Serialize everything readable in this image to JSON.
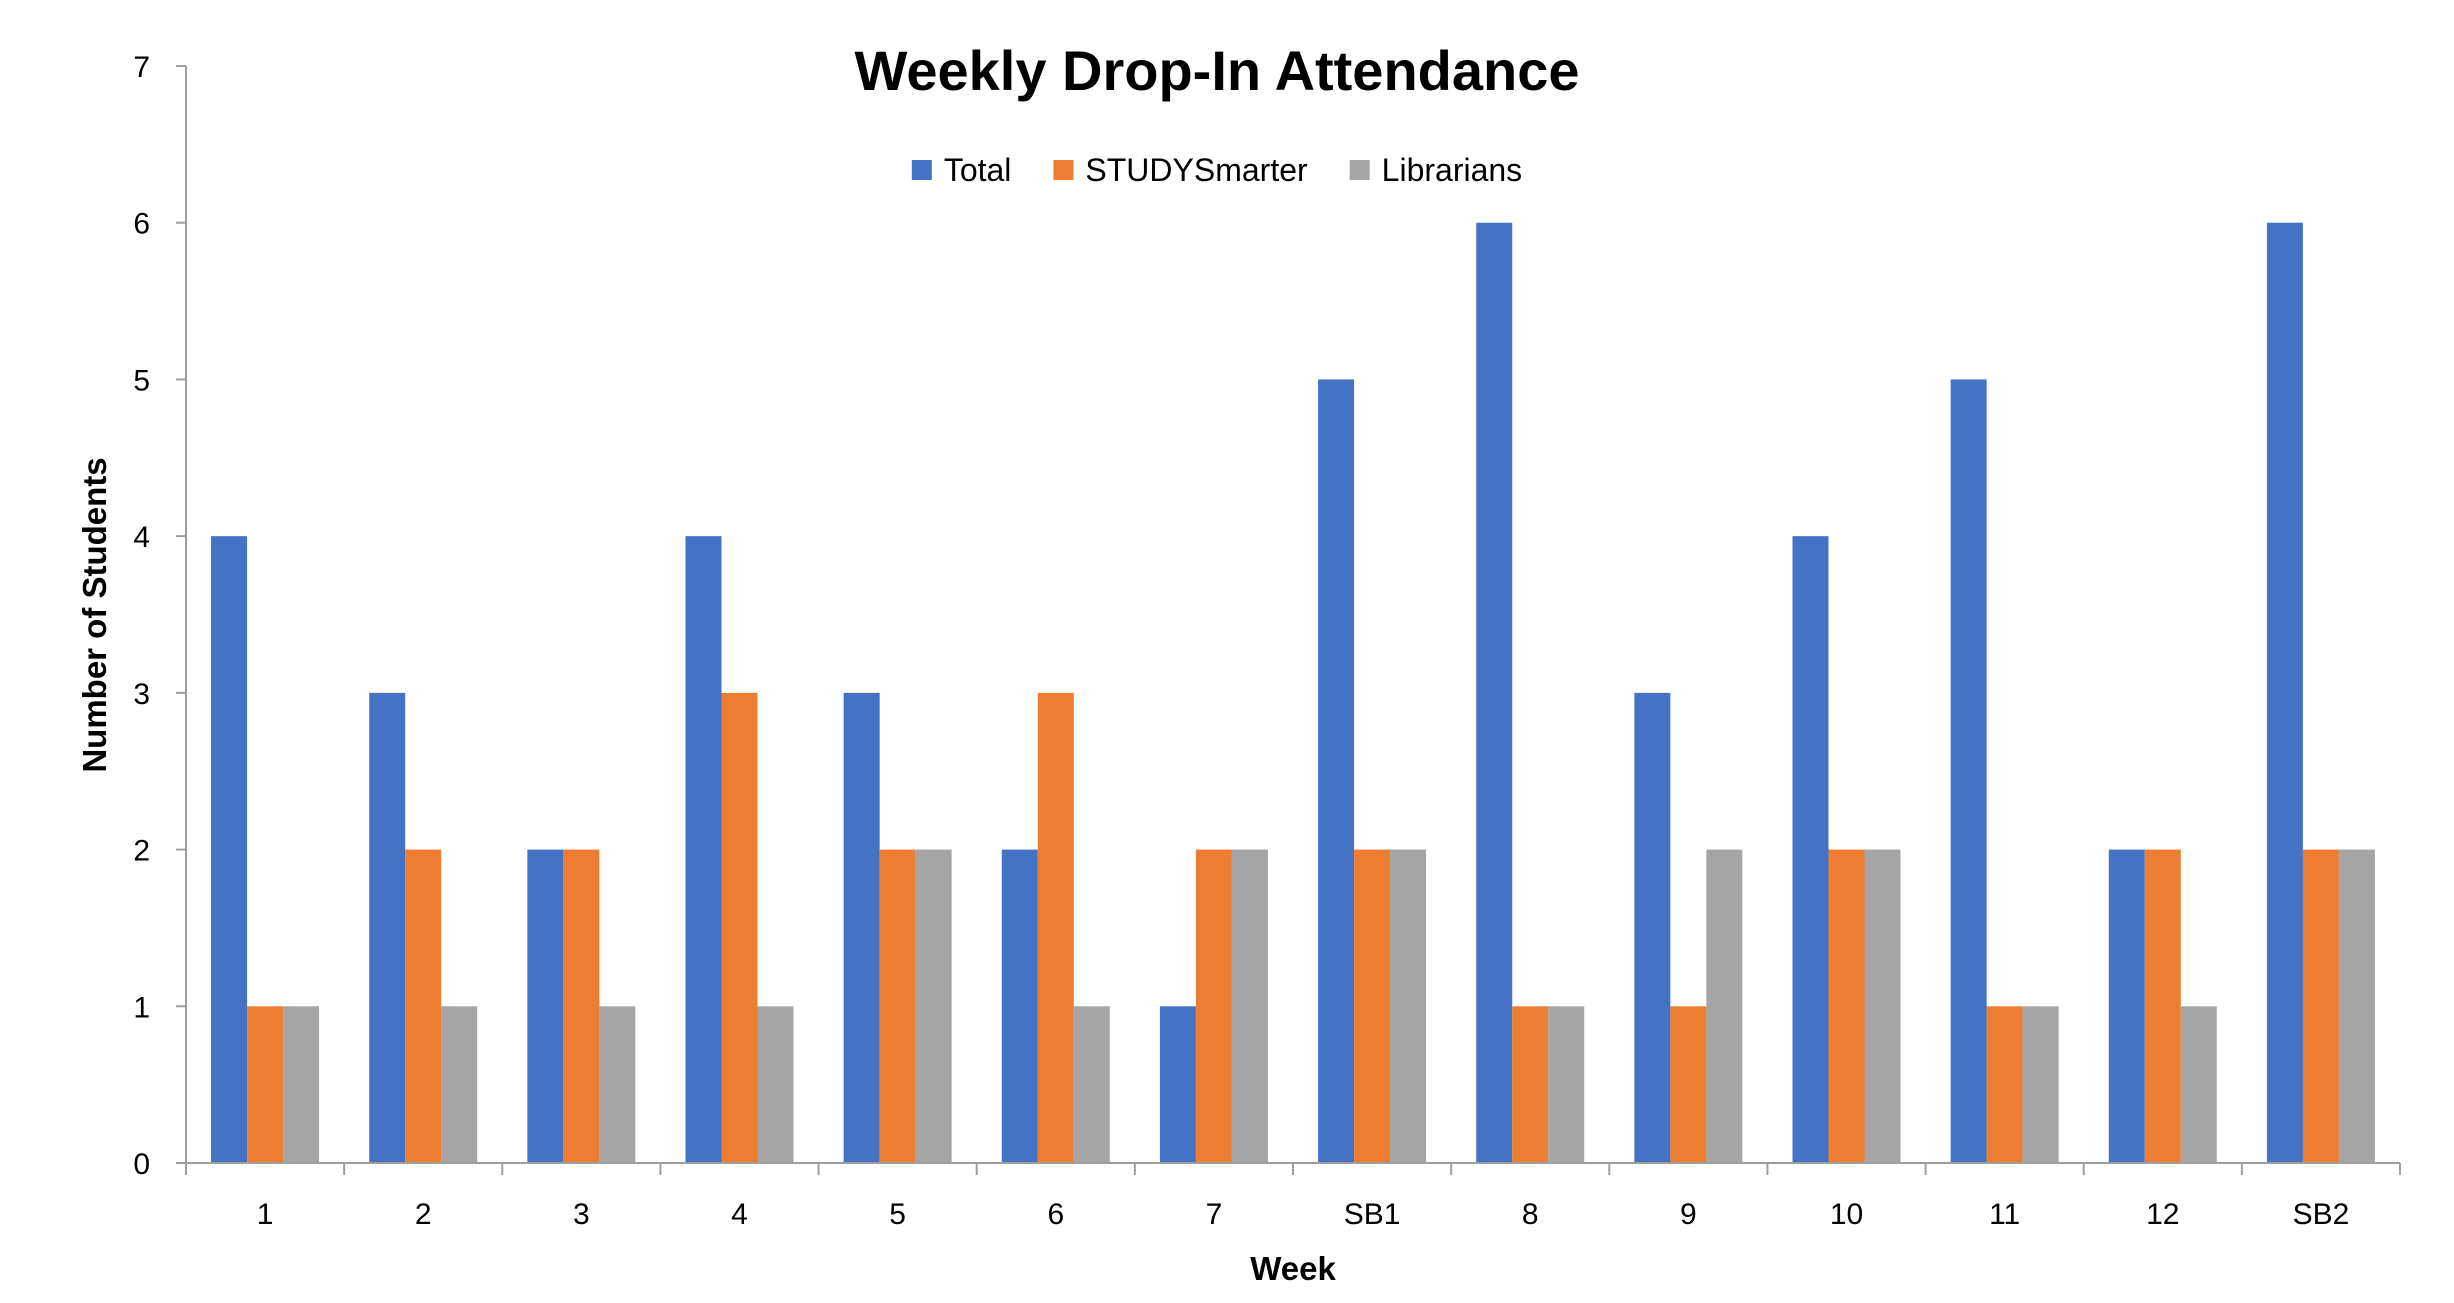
{
  "chart_data": {
    "type": "bar",
    "title": "Weekly Drop-In Attendance",
    "xlabel": "Week",
    "ylabel": "Number of Students",
    "categories": [
      "1",
      "2",
      "3",
      "4",
      "5",
      "6",
      "7",
      "SB1",
      "8",
      "9",
      "10",
      "11",
      "12",
      "SB2"
    ],
    "series": [
      {
        "name": "Total",
        "color": "#4472C4",
        "values": [
          4,
          3,
          2,
          4,
          3,
          2,
          1,
          5,
          6,
          3,
          4,
          5,
          2,
          6
        ]
      },
      {
        "name": "STUDYSmarter",
        "color": "#ED7D31",
        "values": [
          1,
          2,
          2,
          3,
          2,
          3,
          2,
          2,
          1,
          1,
          2,
          1,
          2,
          2
        ]
      },
      {
        "name": "Librarians",
        "color": "#A5A5A5",
        "values": [
          1,
          1,
          1,
          1,
          2,
          1,
          2,
          2,
          1,
          2,
          2,
          1,
          1,
          2
        ]
      }
    ],
    "ylim": [
      0,
      7
    ],
    "yticks": [
      0,
      1,
      2,
      3,
      4,
      5,
      6,
      7
    ],
    "grid": false,
    "legend_position": "top-center"
  }
}
